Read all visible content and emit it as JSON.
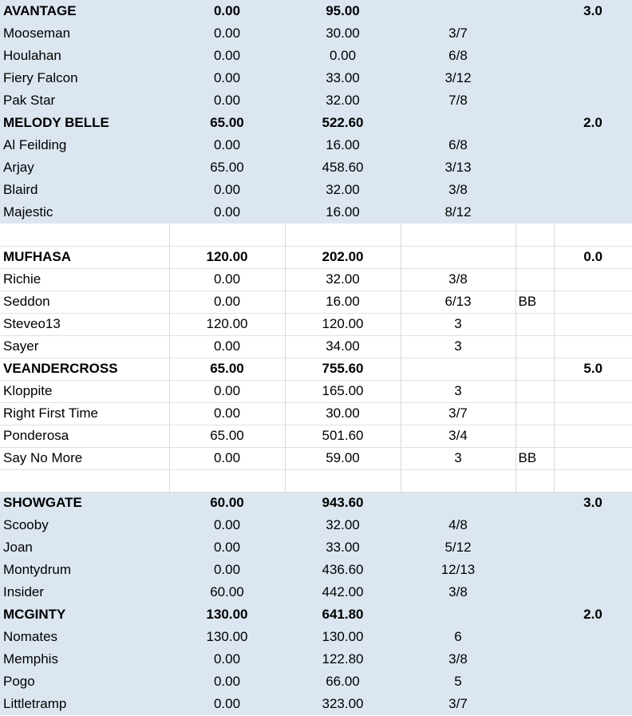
{
  "colors": {
    "shaded_row": "#dce6f1",
    "plain_row": "#ffffff",
    "grid_line": "#d9d9d9"
  },
  "rows": [
    {
      "type": "team",
      "shade": "shaded",
      "name": "AVANTAGE",
      "score": "0.00",
      "total": "95.00",
      "pos": "",
      "flag": "",
      "pts": "3.0"
    },
    {
      "type": "player",
      "shade": "shaded",
      "name": "Mooseman",
      "score": "0.00",
      "total": "30.00",
      "pos": "3/7",
      "flag": "",
      "pts": ""
    },
    {
      "type": "player",
      "shade": "shaded",
      "name": "Houlahan",
      "score": "0.00",
      "total": "0.00",
      "pos": "6/8",
      "flag": "",
      "pts": ""
    },
    {
      "type": "player",
      "shade": "shaded",
      "name": "Fiery Falcon",
      "score": "0.00",
      "total": "33.00",
      "pos": "3/12",
      "flag": "",
      "pts": ""
    },
    {
      "type": "player",
      "shade": "shaded",
      "name": "Pak Star",
      "score": "0.00",
      "total": "32.00",
      "pos": "7/8",
      "flag": "",
      "pts": ""
    },
    {
      "type": "team",
      "shade": "shaded",
      "name": "MELODY BELLE",
      "score": "65.00",
      "total": "522.60",
      "pos": "",
      "flag": "",
      "pts": "2.0"
    },
    {
      "type": "player",
      "shade": "shaded",
      "name": "Al Feilding",
      "score": "0.00",
      "total": "16.00",
      "pos": "6/8",
      "flag": "",
      "pts": ""
    },
    {
      "type": "player",
      "shade": "shaded",
      "name": "Arjay",
      "score": "65.00",
      "total": "458.60",
      "pos": "3/13",
      "flag": "",
      "pts": ""
    },
    {
      "type": "player",
      "shade": "shaded",
      "name": "Blaird",
      "score": "0.00",
      "total": "32.00",
      "pos": "3/8",
      "flag": "",
      "pts": ""
    },
    {
      "type": "player",
      "shade": "shaded",
      "name": "Majestic",
      "score": "0.00",
      "total": "16.00",
      "pos": "8/12",
      "flag": "",
      "pts": ""
    },
    {
      "type": "spacer",
      "shade": "plain",
      "name": "",
      "score": "",
      "total": "",
      "pos": "",
      "flag": "",
      "pts": ""
    },
    {
      "type": "team",
      "shade": "plain",
      "name": "MUFHASA",
      "score": "120.00",
      "total": "202.00",
      "pos": "",
      "flag": "",
      "pts": "0.0"
    },
    {
      "type": "player",
      "shade": "plain",
      "name": "Richie",
      "score": "0.00",
      "total": "32.00",
      "pos": "3/8",
      "flag": "",
      "pts": ""
    },
    {
      "type": "player",
      "shade": "plain",
      "name": "Seddon",
      "score": "0.00",
      "total": "16.00",
      "pos": "6/13",
      "flag": "BB",
      "pts": ""
    },
    {
      "type": "player",
      "shade": "plain",
      "name": "Steveo13",
      "score": "120.00",
      "total": "120.00",
      "pos": "3",
      "flag": "",
      "pts": ""
    },
    {
      "type": "player",
      "shade": "plain",
      "name": "Sayer",
      "score": "0.00",
      "total": "34.00",
      "pos": "3",
      "flag": "",
      "pts": ""
    },
    {
      "type": "team",
      "shade": "plain",
      "name": "VEANDERCROSS",
      "score": "65.00",
      "total": "755.60",
      "pos": "",
      "flag": "",
      "pts": "5.0"
    },
    {
      "type": "player",
      "shade": "plain",
      "name": "Kloppite",
      "score": "0.00",
      "total": "165.00",
      "pos": "3",
      "flag": "",
      "pts": ""
    },
    {
      "type": "player",
      "shade": "plain",
      "name": "Right First Time",
      "score": "0.00",
      "total": "30.00",
      "pos": "3/7",
      "flag": "",
      "pts": ""
    },
    {
      "type": "player",
      "shade": "plain",
      "name": "Ponderosa",
      "score": "65.00",
      "total": "501.60",
      "pos": "3/4",
      "flag": "",
      "pts": ""
    },
    {
      "type": "player",
      "shade": "plain",
      "name": "Say No More",
      "score": "0.00",
      "total": "59.00",
      "pos": "3",
      "flag": "BB",
      "pts": ""
    },
    {
      "type": "spacer",
      "shade": "plain",
      "name": "",
      "score": "",
      "total": "",
      "pos": "",
      "flag": "",
      "pts": ""
    },
    {
      "type": "team",
      "shade": "shaded",
      "name": "SHOWGATE",
      "score": "60.00",
      "total": "943.60",
      "pos": "",
      "flag": "",
      "pts": "3.0"
    },
    {
      "type": "player",
      "shade": "shaded",
      "name": "Scooby",
      "score": "0.00",
      "total": "32.00",
      "pos": "4/8",
      "flag": "",
      "pts": ""
    },
    {
      "type": "player",
      "shade": "shaded",
      "name": "Joan",
      "score": "0.00",
      "total": "33.00",
      "pos": "5/12",
      "flag": "",
      "pts": ""
    },
    {
      "type": "player",
      "shade": "shaded",
      "name": "Montydrum",
      "score": "0.00",
      "total": "436.60",
      "pos": "12/13",
      "flag": "",
      "pts": ""
    },
    {
      "type": "player",
      "shade": "shaded",
      "name": "Insider",
      "score": "60.00",
      "total": "442.00",
      "pos": "3/8",
      "flag": "",
      "pts": ""
    },
    {
      "type": "team",
      "shade": "shaded",
      "name": "MCGINTY",
      "score": "130.00",
      "total": "641.80",
      "pos": "",
      "flag": "",
      "pts": "2.0"
    },
    {
      "type": "player",
      "shade": "shaded",
      "name": "Nomates",
      "score": "130.00",
      "total": "130.00",
      "pos": "6",
      "flag": "",
      "pts": ""
    },
    {
      "type": "player",
      "shade": "shaded",
      "name": "Memphis",
      "score": "0.00",
      "total": "122.80",
      "pos": "3/8",
      "flag": "",
      "pts": ""
    },
    {
      "type": "player",
      "shade": "shaded",
      "name": "Pogo",
      "score": "0.00",
      "total": "66.00",
      "pos": "5",
      "flag": "",
      "pts": ""
    },
    {
      "type": "player",
      "shade": "shaded",
      "name": "Littletramp",
      "score": "0.00",
      "total": "323.00",
      "pos": "3/7",
      "flag": "",
      "pts": ""
    }
  ]
}
